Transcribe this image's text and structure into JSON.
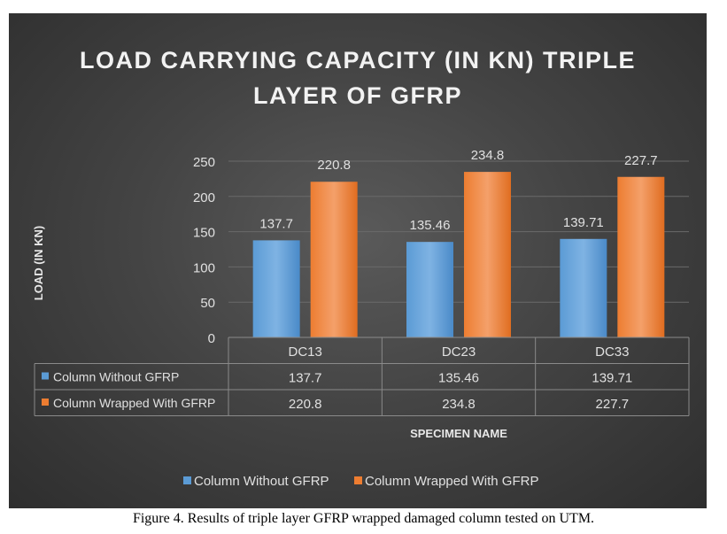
{
  "chart_data": {
    "type": "bar",
    "title_line1": "LOAD CARRYING CAPACITY (IN KN) TRIPLE",
    "title_line2": "LAYER OF GFRP",
    "xlabel": "SPECIMEN NAME",
    "ylabel": "LOAD (IN KN)",
    "categories": [
      "DC13",
      "DC23",
      "DC33"
    ],
    "ylim": [
      0,
      250
    ],
    "yticks": [
      "0",
      "50",
      "100",
      "150",
      "200",
      "250"
    ],
    "grid": true,
    "legend_position": "bottom",
    "data_table": true,
    "series": [
      {
        "name": "Column Without GFRP",
        "values": [
          137.7,
          135.46,
          139.71
        ],
        "labels": [
          "137.7",
          "135.46",
          "139.71"
        ],
        "color": "#5b9bd5"
      },
      {
        "name": "Column Wrapped With GFRP",
        "values": [
          220.8,
          234.8,
          227.7
        ],
        "labels": [
          "220.8",
          "234.8",
          "227.7"
        ],
        "color": "#ed7d31"
      }
    ]
  },
  "caption": "Figure 4. Results of triple layer GFRP wrapped damaged column tested on UTM."
}
